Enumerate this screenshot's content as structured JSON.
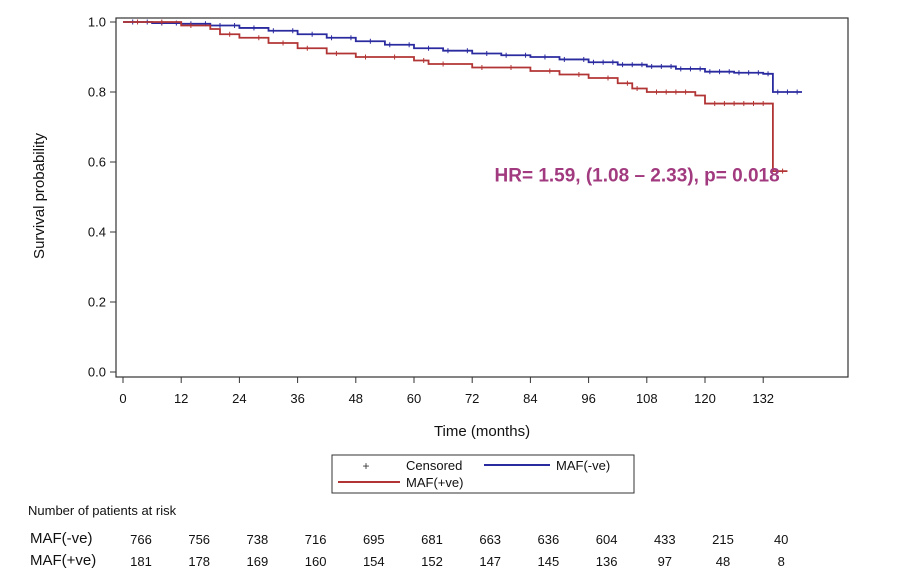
{
  "chart_data": {
    "type": "line",
    "subtype": "kaplan-meier",
    "xlabel": "Time (months)",
    "ylabel": "Survival probability",
    "xlim": [
      0,
      142
    ],
    "ylim": [
      0,
      1.0
    ],
    "x_ticks": [
      0,
      12,
      24,
      36,
      48,
      60,
      72,
      84,
      96,
      108,
      120,
      132
    ],
    "y_ticks": [
      0.0,
      0.2,
      0.4,
      0.6,
      0.8,
      1.0
    ],
    "y_tick_labels": [
      "0.0",
      "0.2",
      "0.4",
      "0.6",
      "0.8",
      "1.0"
    ],
    "annotation": {
      "text": "HR= 1.59, (1.08 – 2.33), p= 0.018",
      "color": "#a23a7f",
      "x": 106,
      "y": 0.545
    },
    "legend": {
      "placement": "bottom-center",
      "censored_label": "Censored",
      "entries": [
        {
          "name": "MAF(-ve)",
          "color": "#2b2ba0"
        },
        {
          "name": "MAF(+ve)",
          "color": "#b23535"
        }
      ]
    },
    "series": [
      {
        "name": "MAF(-ve)",
        "color": "#2b2ba0",
        "steps": [
          [
            0,
            1.0
          ],
          [
            6,
            0.997
          ],
          [
            12,
            0.995
          ],
          [
            18,
            0.99
          ],
          [
            24,
            0.983
          ],
          [
            30,
            0.975
          ],
          [
            36,
            0.965
          ],
          [
            42,
            0.955
          ],
          [
            48,
            0.945
          ],
          [
            54,
            0.935
          ],
          [
            60,
            0.925
          ],
          [
            66,
            0.918
          ],
          [
            72,
            0.91
          ],
          [
            78,
            0.905
          ],
          [
            84,
            0.9
          ],
          [
            90,
            0.893
          ],
          [
            96,
            0.885
          ],
          [
            102,
            0.878
          ],
          [
            108,
            0.873
          ],
          [
            114,
            0.866
          ],
          [
            120,
            0.858
          ],
          [
            126,
            0.855
          ],
          [
            132,
            0.852
          ],
          [
            134,
            0.8
          ],
          [
            140,
            0.8
          ]
        ],
        "censored_x": [
          2,
          5,
          8,
          11,
          14,
          17,
          20,
          23,
          27,
          31,
          35,
          39,
          43,
          47,
          51,
          55,
          59,
          63,
          67,
          71,
          75,
          79,
          83,
          87,
          91,
          95,
          97,
          99,
          101,
          103,
          105,
          107,
          109,
          111,
          113,
          115,
          117,
          119,
          121,
          123,
          125,
          127,
          129,
          131,
          133,
          135,
          137,
          139
        ]
      },
      {
        "name": "MAF(+ve)",
        "color": "#b23535",
        "steps": [
          [
            0,
            1.0
          ],
          [
            12,
            0.99
          ],
          [
            18,
            0.98
          ],
          [
            20,
            0.965
          ],
          [
            24,
            0.955
          ],
          [
            30,
            0.94
          ],
          [
            36,
            0.925
          ],
          [
            42,
            0.91
          ],
          [
            48,
            0.9
          ],
          [
            60,
            0.89
          ],
          [
            63,
            0.88
          ],
          [
            72,
            0.87
          ],
          [
            84,
            0.86
          ],
          [
            90,
            0.85
          ],
          [
            96,
            0.84
          ],
          [
            102,
            0.825
          ],
          [
            105,
            0.81
          ],
          [
            108,
            0.8
          ],
          [
            118,
            0.79
          ],
          [
            120,
            0.767
          ],
          [
            134,
            0.767
          ],
          [
            134,
            0.574
          ],
          [
            137,
            0.574
          ]
        ],
        "censored_x": [
          3,
          8,
          14,
          22,
          28,
          33,
          38,
          44,
          50,
          56,
          62,
          66,
          74,
          80,
          88,
          94,
          100,
          104,
          106,
          110,
          112,
          114,
          116,
          122,
          124,
          126,
          128,
          130,
          132,
          136
        ]
      }
    ],
    "risk_table": {
      "title": "Number of patients at risk",
      "times": [
        0,
        12,
        24,
        36,
        48,
        60,
        72,
        84,
        96,
        108,
        120,
        132
      ],
      "rows": [
        {
          "label": "MAF(-ve)",
          "values": [
            766,
            756,
            738,
            716,
            695,
            681,
            663,
            636,
            604,
            433,
            215,
            40
          ]
        },
        {
          "label": "MAF(+ve)",
          "values": [
            181,
            178,
            169,
            160,
            154,
            152,
            147,
            145,
            136,
            97,
            48,
            8
          ]
        }
      ]
    }
  }
}
